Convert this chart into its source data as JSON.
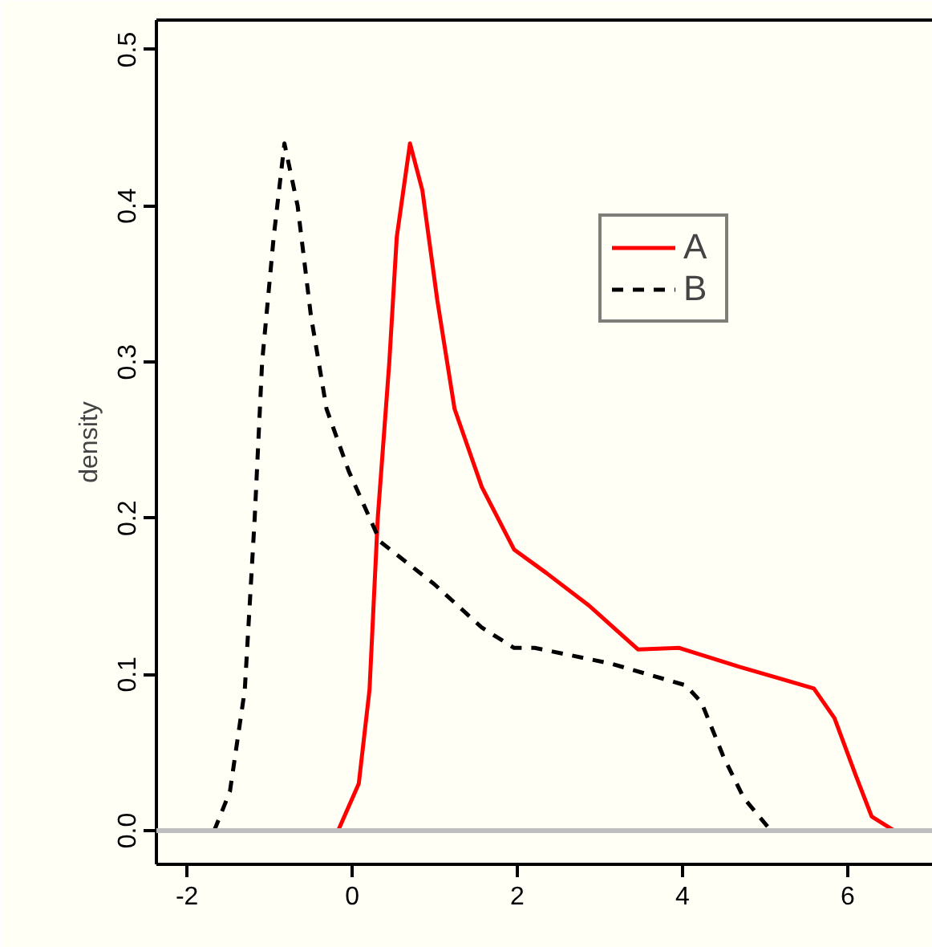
{
  "chart_data": {
    "type": "line",
    "ylabel": "density",
    "xlim": [
      -2.37,
      7.03
    ],
    "ylim": [
      -0.0216,
      0.519
    ],
    "xticks": [
      -2,
      0,
      2,
      4,
      6
    ],
    "yticks": [
      {
        "value": 0,
        "label": "0.0"
      },
      {
        "value": 0.1,
        "label": "0.1"
      },
      {
        "value": 0.2,
        "label": "0.2"
      },
      {
        "value": 0.3,
        "label": "0.3"
      },
      {
        "value": 0.4,
        "label": "0.4"
      },
      {
        "value": 0.5,
        "label": "0.5"
      }
    ],
    "grid": false,
    "legend": "top right",
    "ref_lines": [
      {
        "axis": "y",
        "value": 0,
        "color": "#bebebe"
      }
    ],
    "series": [
      {
        "name": "A",
        "color": "#ff0000",
        "line_style": "solid",
        "x": [
          -0.17,
          0.08,
          0.21,
          0.31,
          0.45,
          0.54,
          0.7,
          0.85,
          1.03,
          1.24,
          1.57,
          1.96,
          2.35,
          2.87,
          3.46,
          3.96,
          4.68,
          5.2,
          5.59,
          5.84,
          6.1,
          6.29,
          6.56
        ],
        "values": [
          0,
          0.03,
          0.09,
          0.2,
          0.3,
          0.38,
          0.44,
          0.41,
          0.34,
          0.27,
          0.22,
          0.18,
          0.165,
          0.144,
          0.116,
          0.117,
          0.105,
          0.097,
          0.091,
          0.072,
          0.035,
          0.009,
          0
        ]
      },
      {
        "name": "B",
        "color": "#000000",
        "line_style": "dashed",
        "x": [
          -1.67,
          -1.48,
          -1.3,
          -1.18,
          -1.09,
          -0.95,
          -0.82,
          -0.66,
          -0.5,
          -0.31,
          -0.04,
          0.34,
          0.99,
          1.57,
          1.96,
          2.21,
          3.13,
          4.04,
          4.23,
          4.49,
          4.74,
          5.07
        ],
        "values": [
          0,
          0.025,
          0.09,
          0.2,
          0.3,
          0.38,
          0.44,
          0.4,
          0.33,
          0.27,
          0.23,
          0.185,
          0.158,
          0.13,
          0.117,
          0.117,
          0.107,
          0.093,
          0.082,
          0.048,
          0.021,
          0
        ]
      }
    ]
  }
}
